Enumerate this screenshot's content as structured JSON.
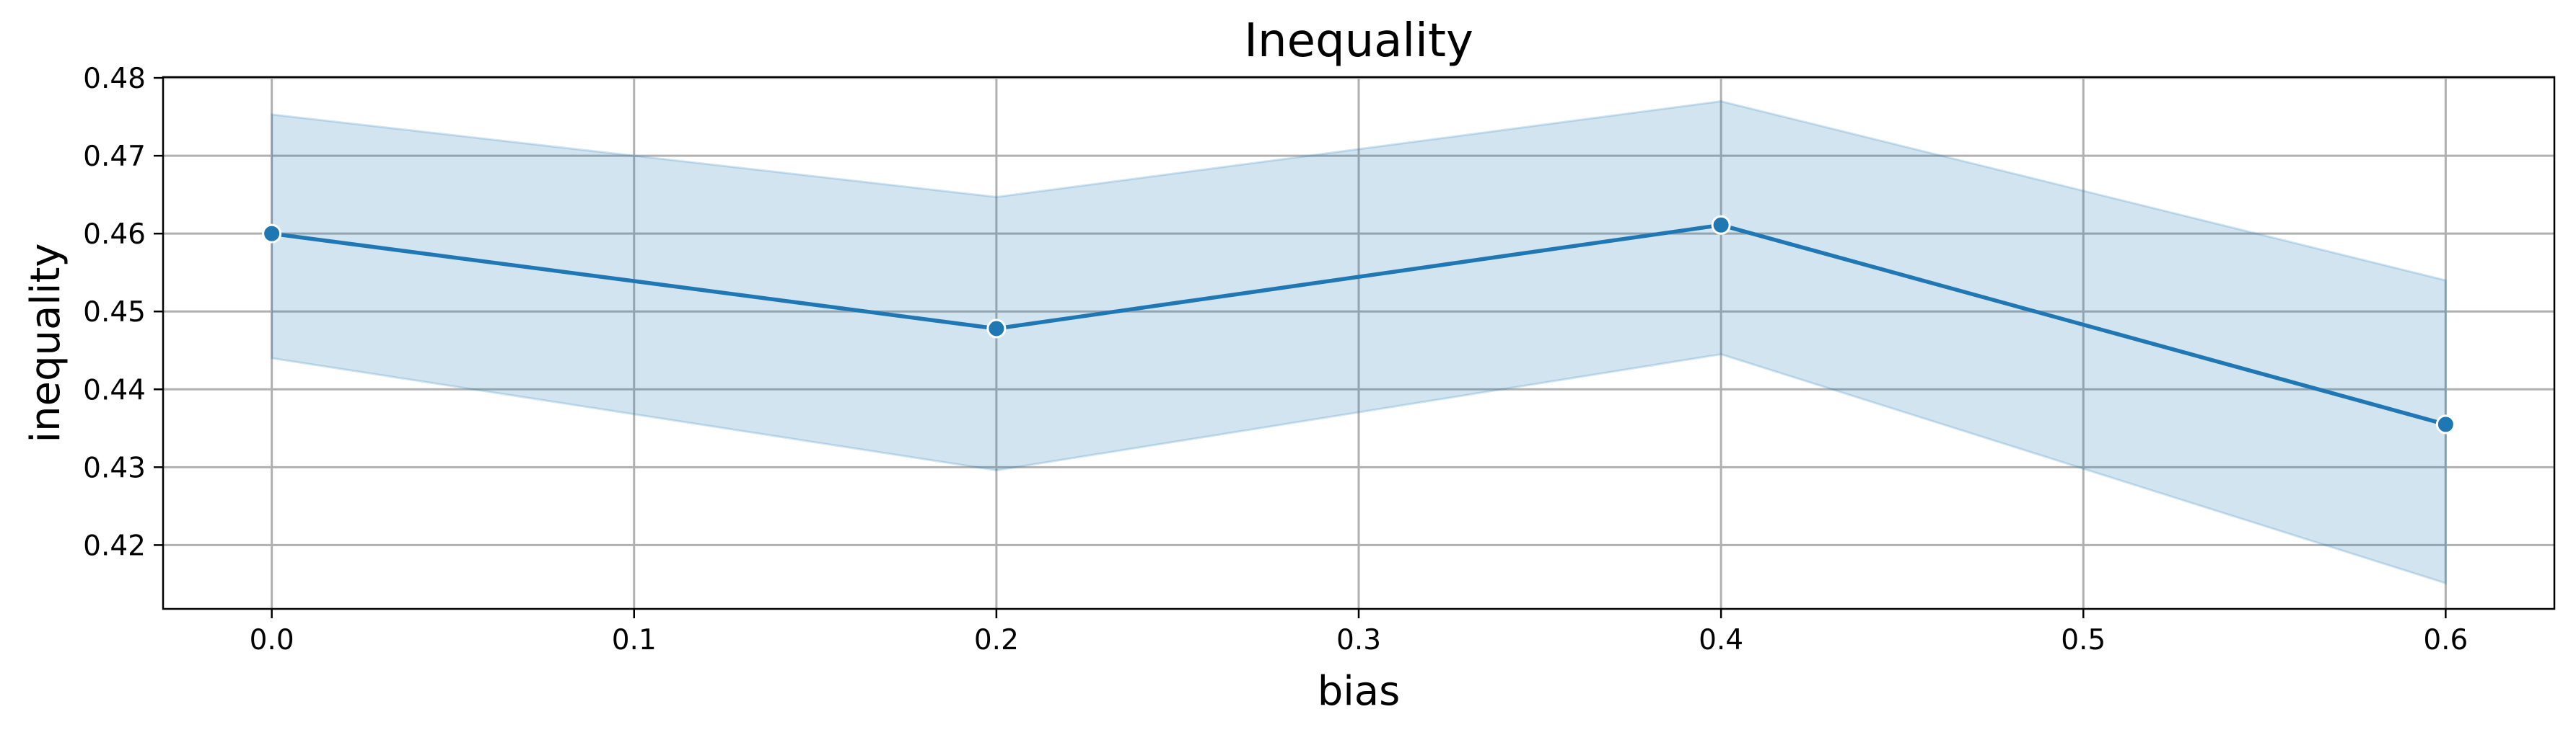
{
  "chart_data": {
    "type": "line",
    "title": "Inequality",
    "xlabel": "bias",
    "ylabel": "inequality",
    "xlim": [
      -0.03,
      0.63
    ],
    "ylim": [
      0.4118,
      0.4801
    ],
    "xticks": [
      0.0,
      0.1,
      0.2,
      0.3,
      0.4,
      0.5,
      0.6
    ],
    "xtick_labels": [
      "0.0",
      "0.1",
      "0.2",
      "0.3",
      "0.4",
      "0.5",
      "0.6"
    ],
    "yticks": [
      0.42,
      0.43,
      0.44,
      0.45,
      0.46,
      0.47,
      0.48
    ],
    "ytick_labels": [
      "0.42",
      "0.43",
      "0.44",
      "0.45",
      "0.46",
      "0.47",
      "0.48"
    ],
    "grid": true,
    "series": [
      {
        "x": [
          0.0,
          0.2,
          0.4,
          0.6
        ],
        "y": [
          0.46,
          0.4478,
          0.4611,
          0.4355
        ],
        "ci_lower": [
          0.444,
          0.4296,
          0.4445,
          0.4151
        ],
        "ci_upper": [
          0.4753,
          0.4647,
          0.477,
          0.454
        ]
      }
    ],
    "colors": {
      "line": "#1f77b4",
      "band": "#1f77b4",
      "marker_edge": "#ffffff"
    }
  }
}
